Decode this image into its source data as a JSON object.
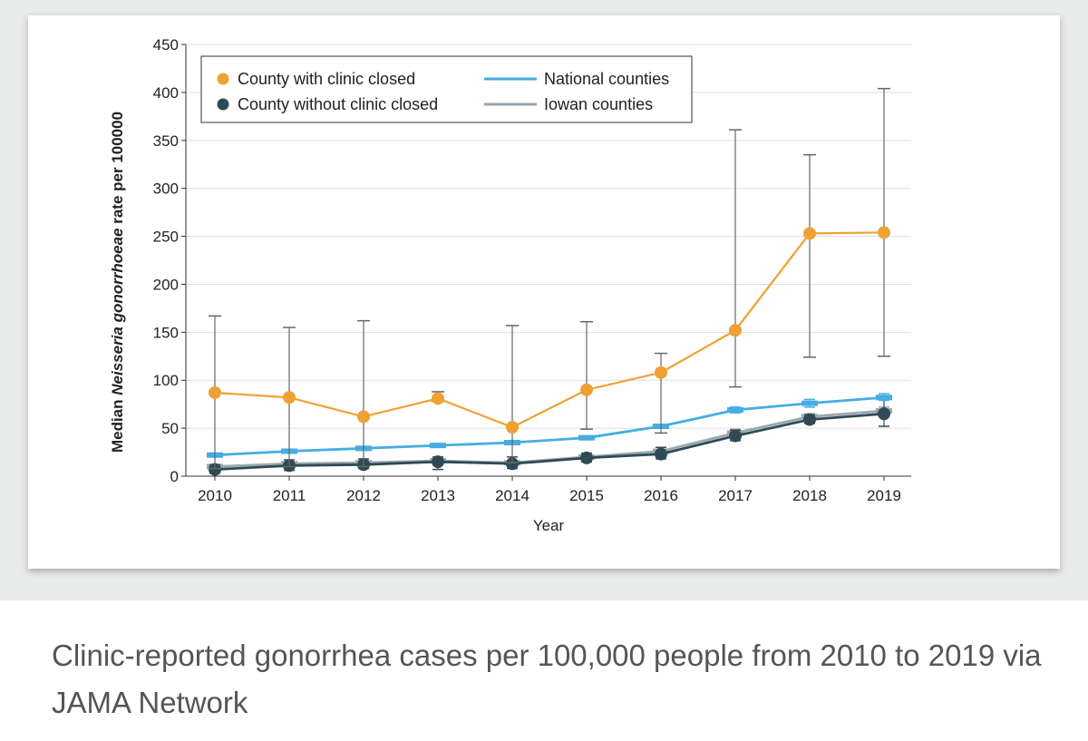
{
  "colors": {
    "closed": "#f0a133",
    "without": "#2f4a55",
    "national": "#45ade2",
    "iowan": "#9aa7ad",
    "errorbar": "#666666"
  },
  "caption": "Clinic-reported gonorrhea cases per 100,000 people from 2010 to 2019 via JAMA Network",
  "chart_data": {
    "type": "line",
    "title": "",
    "xlabel": "Year",
    "ylabel_prefix": "Median ",
    "ylabel_italic": "Neisseria gonorrhoeae",
    "ylabel_suffix": " rate per 100000",
    "ylim": [
      0,
      450
    ],
    "yticks": [
      0,
      50,
      100,
      150,
      200,
      250,
      300,
      350,
      400,
      450
    ],
    "x": [
      "2010",
      "2011",
      "2012",
      "2013",
      "2014",
      "2015",
      "2016",
      "2017",
      "2018",
      "2019"
    ],
    "legend_position": "top-left",
    "series": [
      {
        "key": "closed",
        "name": "County with clinic closed",
        "style": "circle",
        "values": [
          87,
          82,
          62,
          81,
          51,
          90,
          108,
          152,
          253,
          254
        ],
        "error_low": [
          8,
          10,
          10,
          78,
          14,
          49,
          45,
          93,
          124,
          125
        ],
        "error_high": [
          167,
          155,
          162,
          88,
          157,
          161,
          128,
          361,
          335,
          404
        ]
      },
      {
        "key": "without",
        "name": "County without clinic closed",
        "style": "circle",
        "values": [
          7,
          11,
          12,
          15,
          13,
          19,
          23,
          42,
          59,
          65
        ],
        "error_low": [
          3,
          6,
          8,
          7,
          8,
          15,
          18,
          37,
          55,
          52
        ],
        "error_high": [
          12,
          17,
          18,
          20,
          20,
          24,
          30,
          48,
          64,
          80
        ]
      },
      {
        "key": "national",
        "name": "National counties",
        "style": "line",
        "values": [
          22,
          26,
          29,
          32,
          35,
          40,
          52,
          69,
          76,
          82
        ],
        "error_low": [
          20,
          24,
          27,
          30,
          33,
          38,
          50,
          66,
          72,
          79
        ],
        "error_high": [
          24,
          28,
          31,
          34,
          37,
          42,
          54,
          72,
          80,
          86
        ]
      },
      {
        "key": "iowan",
        "name": "Iowan counties",
        "style": "line",
        "values": [
          10,
          13,
          14,
          16,
          14,
          20,
          26,
          45,
          62,
          68
        ],
        "error_low": [
          8,
          11,
          12,
          14,
          12,
          18,
          24,
          41,
          59,
          65
        ],
        "error_high": [
          12,
          15,
          16,
          18,
          16,
          22,
          28,
          49,
          65,
          72
        ]
      }
    ]
  }
}
